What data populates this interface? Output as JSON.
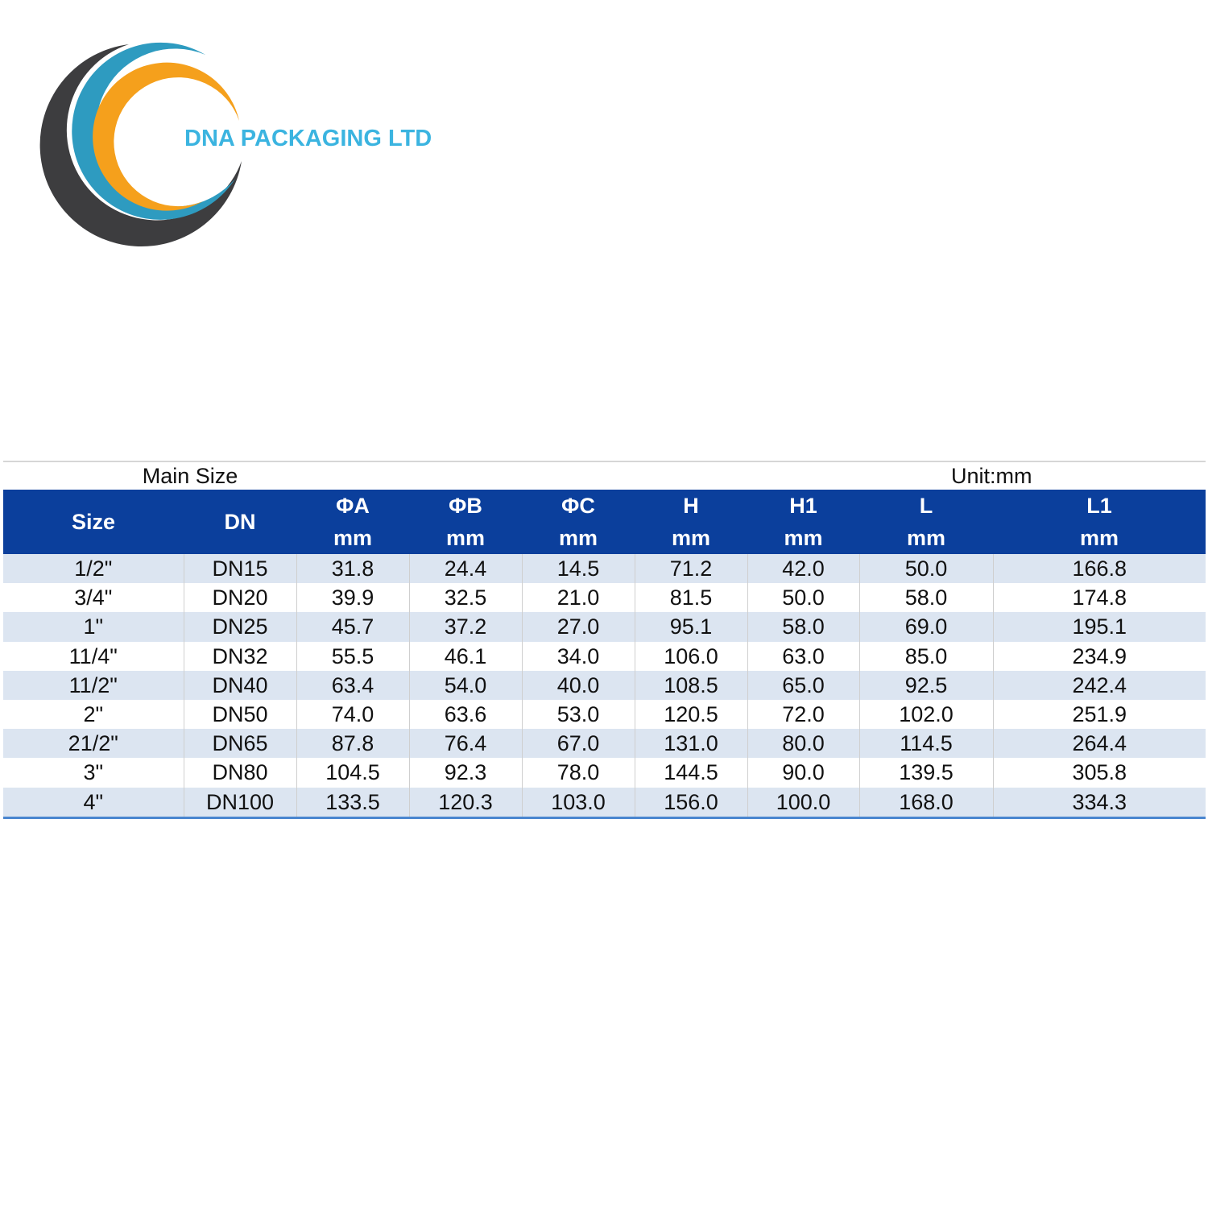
{
  "logo": {
    "text": "DNA PACKAGING LTD"
  },
  "table": {
    "caption_left": "Main Size",
    "caption_right": "Unit:mm",
    "header": [
      {
        "name": "Size"
      },
      {
        "name": "DN"
      },
      {
        "name": "ΦA",
        "unit": "mm"
      },
      {
        "name": "ΦB",
        "unit": "mm"
      },
      {
        "name": "ΦC",
        "unit": "mm"
      },
      {
        "name": "H",
        "unit": "mm"
      },
      {
        "name": "H1",
        "unit": "mm"
      },
      {
        "name": "L",
        "unit": "mm"
      },
      {
        "name": "L1",
        "unit": "mm"
      }
    ],
    "rows": [
      [
        "1/2\"",
        "DN15",
        "31.8",
        "24.4",
        "14.5",
        "71.2",
        "42.0",
        "50.0",
        "166.8"
      ],
      [
        "3/4\"",
        "DN20",
        "39.9",
        "32.5",
        "21.0",
        "81.5",
        "50.0",
        "58.0",
        "174.8"
      ],
      [
        "1\"",
        "DN25",
        "45.7",
        "37.2",
        "27.0",
        "95.1",
        "58.0",
        "69.0",
        "195.1"
      ],
      [
        "11/4\"",
        "DN32",
        "55.5",
        "46.1",
        "34.0",
        "106.0",
        "63.0",
        "85.0",
        "234.9"
      ],
      [
        "11/2\"",
        "DN40",
        "63.4",
        "54.0",
        "40.0",
        "108.5",
        "65.0",
        "92.5",
        "242.4"
      ],
      [
        "2\"",
        "DN50",
        "74.0",
        "63.6",
        "53.0",
        "120.5",
        "72.0",
        "102.0",
        "251.9"
      ],
      [
        "21/2\"",
        "DN65",
        "87.8",
        "76.4",
        "67.0",
        "131.0",
        "80.0",
        "114.5",
        "264.4"
      ],
      [
        "3\"",
        "DN80",
        "104.5",
        "92.3",
        "78.0",
        "144.5",
        "90.0",
        "139.5",
        "305.8"
      ],
      [
        "4\"",
        "DN100",
        "133.5",
        "120.3",
        "103.0",
        "156.0",
        "100.0",
        "168.0",
        "334.3"
      ]
    ]
  }
}
